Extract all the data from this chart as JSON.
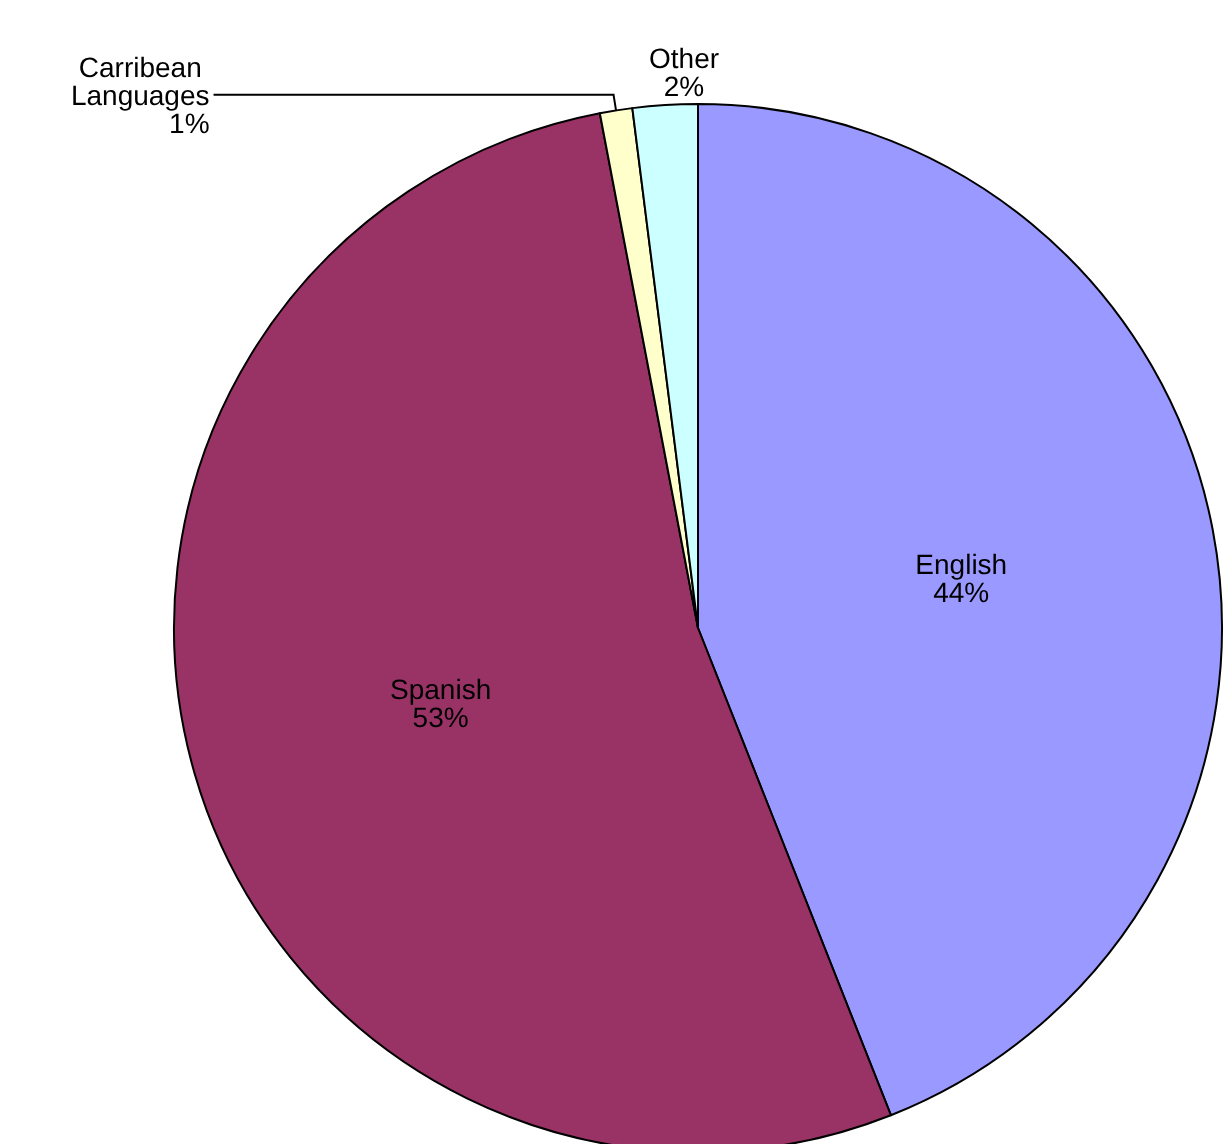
{
  "chart_data": {
    "type": "pie",
    "categories": [
      "English",
      "Spanish",
      "Carribean Languages",
      "Other"
    ],
    "values": [
      44,
      53,
      1,
      2
    ],
    "colors": [
      "#9999ff",
      "#993366",
      "#ffffcc",
      "#ccffff"
    ],
    "value_labels": [
      "44%",
      "53%",
      "1%",
      "2%"
    ],
    "legend": false
  }
}
